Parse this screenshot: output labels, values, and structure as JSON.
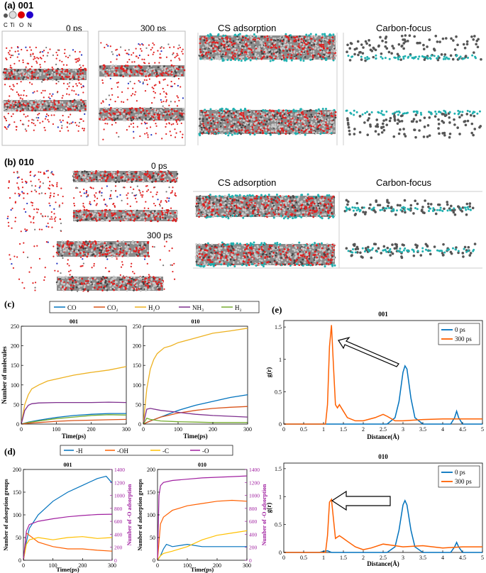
{
  "panel_a": {
    "label": "(a) 001",
    "legend_atoms": [
      "C",
      "Ti",
      "O",
      "N"
    ],
    "snap_labels": [
      "0 ps",
      "300 ps"
    ],
    "view_titles": [
      "CS adsorption",
      "Carbon-focus"
    ]
  },
  "panel_b": {
    "label": "(b) 010",
    "snap_labels": [
      "0 ps",
      "300 ps"
    ],
    "view_titles": [
      "CS adsorption",
      "Carbon-focus"
    ]
  },
  "colors": {
    "CO": "#0072BD",
    "CO2": "#D95319",
    "H2O": "#EDB120",
    "NH3": "#7E2F8E",
    "H2": "#77AC30",
    "H": "#0072BD",
    "OH": "#FF6000",
    "C": "#FFC000",
    "O": "#A020A0",
    "ti": "#c8c8c8",
    "oxy": "#e02020",
    "carbon": "#555555",
    "nitro": "#2030c0",
    "cyan": "#20b0b0"
  },
  "chart_data": [
    {
      "id": "c",
      "panel_label": "(c)",
      "type": "line",
      "legend": [
        "CO",
        "CO2",
        "H2O",
        "NH3",
        "H2"
      ],
      "xlabel": "Time(ps)",
      "ylabel": "Number of molecules",
      "xlim": [
        0,
        300
      ],
      "ylim": [
        0,
        250
      ],
      "xticks": [
        "0",
        "100",
        "200",
        "300"
      ],
      "yticks": [
        "0",
        "50",
        "100",
        "150",
        "200",
        "250"
      ],
      "subplots": [
        {
          "title": "001",
          "series": [
            {
              "name": "H2O",
              "x": [
                0,
                10,
                20,
                30,
                50,
                75,
                100,
                150,
                200,
                250,
                300
              ],
              "y": [
                0,
                50,
                75,
                90,
                100,
                110,
                115,
                125,
                132,
                138,
                147
              ]
            },
            {
              "name": "NH3",
              "x": [
                0,
                10,
                20,
                30,
                50,
                100,
                150,
                200,
                250,
                300
              ],
              "y": [
                0,
                35,
                48,
                52,
                54,
                55,
                55,
                55,
                56,
                55
              ]
            },
            {
              "name": "CO",
              "x": [
                0,
                20,
                50,
                100,
                150,
                200,
                250,
                300
              ],
              "y": [
                0,
                5,
                10,
                17,
                22,
                25,
                27,
                27
              ]
            },
            {
              "name": "H2",
              "x": [
                0,
                20,
                50,
                100,
                150,
                200,
                250,
                300
              ],
              "y": [
                0,
                4,
                8,
                14,
                18,
                22,
                24,
                23
              ]
            },
            {
              "name": "CO2",
              "x": [
                0,
                20,
                50,
                100,
                150,
                200,
                250,
                300
              ],
              "y": [
                0,
                2,
                4,
                7,
                9,
                10,
                11,
                12
              ]
            }
          ]
        },
        {
          "title": "010",
          "series": [
            {
              "name": "H2O",
              "x": [
                0,
                10,
                20,
                30,
                40,
                60,
                80,
                100,
                150,
                200,
                250,
                300
              ],
              "y": [
                0,
                90,
                140,
                165,
                180,
                195,
                200,
                208,
                220,
                232,
                238,
                245
              ]
            },
            {
              "name": "CO",
              "x": [
                0,
                20,
                50,
                100,
                150,
                200,
                250,
                300
              ],
              "y": [
                0,
                8,
                18,
                35,
                48,
                58,
                68,
                75
              ]
            },
            {
              "name": "CO2",
              "x": [
                0,
                20,
                50,
                100,
                150,
                200,
                250,
                300
              ],
              "y": [
                0,
                8,
                18,
                28,
                35,
                40,
                43,
                45
              ]
            },
            {
              "name": "NH3",
              "x": [
                0,
                10,
                20,
                50,
                100,
                150,
                200,
                250,
                300
              ],
              "y": [
                0,
                38,
                40,
                35,
                30,
                25,
                22,
                20,
                18
              ]
            },
            {
              "name": "H2",
              "x": [
                0,
                10,
                20,
                50,
                100,
                150,
                200,
                250,
                300
              ],
              "y": [
                0,
                15,
                12,
                8,
                6,
                5,
                4,
                4,
                4
              ]
            }
          ]
        }
      ]
    },
    {
      "id": "d",
      "panel_label": "(d)",
      "type": "line",
      "legend": [
        "-H",
        "-OH",
        "-C",
        "-O"
      ],
      "xlabel": "Time(ps)",
      "ylabel": "Number of adsorption groups",
      "y2label": "Number of -O adsorption",
      "xlim": [
        0,
        300
      ],
      "ylim": [
        0,
        200
      ],
      "y2lim": [
        0,
        1400
      ],
      "xticks": [
        "0",
        "100",
        "200",
        "300"
      ],
      "yticks": [
        "0",
        "50",
        "100",
        "150",
        "200"
      ],
      "y2ticks": [
        "0",
        "200",
        "400",
        "600",
        "800",
        "1000",
        "1200",
        "1400"
      ],
      "subplots": [
        {
          "title": "001",
          "series": [
            {
              "name": "-H",
              "x": [
                0,
                10,
                20,
                50,
                100,
                150,
                200,
                250,
                280,
                300
              ],
              "y": [
                0,
                40,
                70,
                100,
                130,
                150,
                165,
                180,
                185,
                170
              ]
            },
            {
              "name": "-OH",
              "x": [
                0,
                10,
                20,
                50,
                100,
                150,
                200,
                250,
                300
              ],
              "y": [
                0,
                60,
                55,
                40,
                30,
                25,
                25,
                22,
                20
              ]
            },
            {
              "name": "-C",
              "x": [
                0,
                10,
                20,
                50,
                100,
                150,
                200,
                250,
                300
              ],
              "y": [
                0,
                35,
                45,
                50,
                45,
                50,
                52,
                48,
                50
              ]
            },
            {
              "name": "-O",
              "axis": "right",
              "x": [
                0,
                10,
                20,
                50,
                100,
                150,
                200,
                250,
                300
              ],
              "y": [
                0,
                450,
                550,
                600,
                640,
                670,
                690,
                705,
                710
              ]
            }
          ]
        },
        {
          "title": "010",
          "series": [
            {
              "name": "-H",
              "x": [
                0,
                10,
                20,
                30,
                50,
                100,
                150,
                200,
                250,
                300
              ],
              "y": [
                0,
                10,
                25,
                35,
                30,
                35,
                30,
                30,
                30,
                30
              ]
            },
            {
              "name": "-OH",
              "x": [
                0,
                10,
                20,
                50,
                100,
                150,
                200,
                250,
                300
              ],
              "y": [
                0,
                80,
                95,
                110,
                120,
                125,
                130,
                132,
                130
              ]
            },
            {
              "name": "-C",
              "x": [
                0,
                10,
                20,
                50,
                100,
                150,
                200,
                250,
                300
              ],
              "y": [
                0,
                10,
                15,
                20,
                30,
                45,
                55,
                60,
                65
              ]
            },
            {
              "name": "-O",
              "axis": "right",
              "x": [
                0,
                5,
                10,
                20,
                50,
                100,
                150,
                200,
                250,
                300
              ],
              "y": [
                0,
                1000,
                1150,
                1200,
                1230,
                1250,
                1270,
                1280,
                1290,
                1300
              ]
            }
          ]
        }
      ]
    },
    {
      "id": "e",
      "panel_label": "(e)",
      "type": "line",
      "legend": [
        "0 ps",
        "300 ps"
      ],
      "xlabel": "Distance(Å)",
      "ylabel": "g(r)",
      "xlim": [
        0,
        5
      ],
      "ylim": [
        0,
        1.6
      ],
      "xticks": [
        "0",
        "0.5",
        "1",
        "1.5",
        "2",
        "2.5",
        "3",
        "3.5",
        "4",
        "4.5",
        "5"
      ],
      "yticks": [
        "0",
        "0.5",
        "1",
        "1.5"
      ],
      "subplots": [
        {
          "title": "001",
          "series": [
            {
              "name": "0 ps",
              "x": [
                0,
                2.6,
                2.8,
                2.9,
                3.0,
                3.05,
                3.1,
                3.2,
                3.3,
                3.5,
                4.2,
                4.3,
                4.35,
                4.4,
                4.5,
                5
              ],
              "y": [
                0,
                0,
                0.1,
                0.35,
                0.8,
                0.9,
                0.85,
                0.4,
                0.1,
                0,
                0,
                0.1,
                0.2,
                0.1,
                0,
                0
              ]
            },
            {
              "name": "300 ps",
              "x": [
                0,
                1.05,
                1.1,
                1.15,
                1.2,
                1.25,
                1.3,
                1.35,
                1.4,
                1.5,
                1.6,
                1.8,
                2.0,
                2.3,
                2.5,
                2.6,
                2.8,
                3.0,
                3.5,
                4.0,
                4.5,
                5
              ],
              "y": [
                0,
                0,
                0.3,
                1.2,
                1.53,
                0.9,
                0.3,
                0.25,
                0.3,
                0.2,
                0.1,
                0.05,
                0.05,
                0.1,
                0.15,
                0.12,
                0.05,
                0.05,
                0.07,
                0.08,
                0.08,
                0.08
              ]
            }
          ]
        },
        {
          "title": "010",
          "series": [
            {
              "name": "0 ps",
              "x": [
                0,
                0.9,
                1.0,
                1.1,
                1.2,
                2.6,
                2.8,
                2.9,
                3.0,
                3.05,
                3.1,
                3.2,
                3.3,
                3.5,
                4.2,
                4.3,
                4.35,
                4.4,
                4.5,
                5
              ],
              "y": [
                0,
                0,
                0.02,
                0.03,
                0,
                0,
                0.1,
                0.4,
                0.85,
                0.93,
                0.85,
                0.4,
                0.1,
                0,
                0,
                0.1,
                0.18,
                0.1,
                0,
                0
              ]
            },
            {
              "name": "300 ps",
              "x": [
                0,
                1.05,
                1.1,
                1.15,
                1.2,
                1.25,
                1.3,
                1.4,
                1.5,
                1.6,
                1.8,
                2.0,
                2.2,
                2.5,
                2.8,
                3.0,
                3.5,
                4.0,
                4.5,
                5
              ],
              "y": [
                0,
                0,
                0.3,
                0.9,
                0.95,
                0.6,
                0.25,
                0.3,
                0.25,
                0.2,
                0.1,
                0.05,
                0.08,
                0.15,
                0.12,
                0.1,
                0.12,
                0.08,
                0.1,
                0.1
              ]
            }
          ]
        }
      ]
    }
  ]
}
